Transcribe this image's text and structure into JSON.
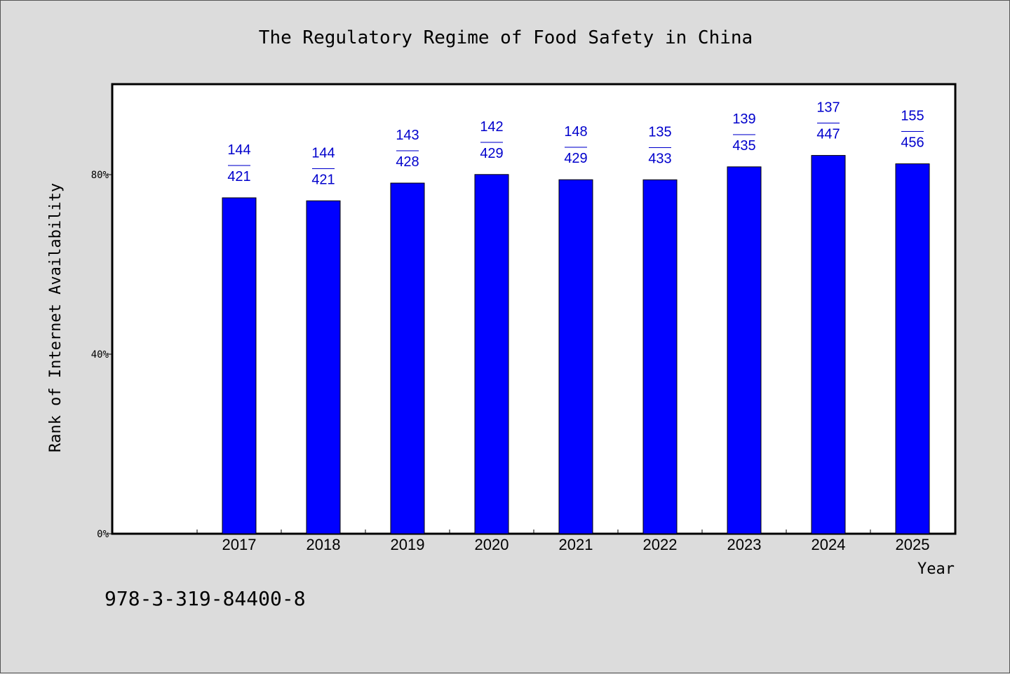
{
  "chart_data": {
    "type": "bar",
    "title": "The Regulatory Regime of Food Safety in China",
    "ylabel": "Rank of Internet Availability",
    "xlabel": "Year",
    "categories": [
      "2017",
      "2018",
      "2019",
      "2020",
      "2021",
      "2022",
      "2023",
      "2024",
      "2025"
    ],
    "values": [
      0.7484,
      0.7417,
      0.7812,
      0.8003,
      0.7887,
      0.7885,
      0.8174,
      0.8428,
      0.8241
    ],
    "unit": "percent",
    "ylim": [
      0,
      1.0
    ],
    "yticks": [
      {
        "value": 0,
        "label": "0%"
      },
      {
        "value": 0.4,
        "label": "40%"
      },
      {
        "value": 0.8,
        "label": "80%"
      }
    ],
    "data_labels": [
      {
        "top": "144",
        "sep": "——",
        "bottom": "421"
      },
      {
        "top": "144",
        "sep": "——",
        "bottom": "421"
      },
      {
        "top": "143",
        "sep": "——",
        "bottom": "428"
      },
      {
        "top": "142",
        "sep": "——",
        "bottom": "429"
      },
      {
        "top": "148",
        "sep": "——",
        "bottom": "429"
      },
      {
        "top": "135",
        "sep": "——",
        "bottom": "433"
      },
      {
        "top": "139",
        "sep": "——",
        "bottom": "435"
      },
      {
        "top": "137",
        "sep": "——",
        "bottom": "447"
      },
      {
        "top": "155",
        "sep": "——",
        "bottom": "456"
      }
    ],
    "grid": false,
    "legend": "none",
    "bar_color": "#0000ff",
    "label_color": "#0000cc"
  },
  "footer": {
    "isbn": "978-3-319-84400-8"
  }
}
